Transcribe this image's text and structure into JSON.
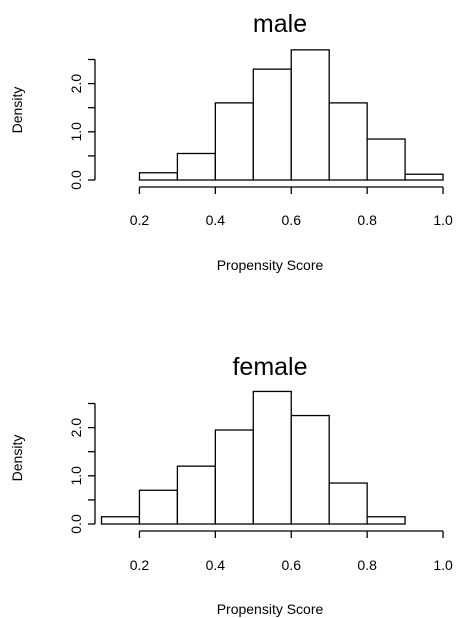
{
  "chart_data": [
    {
      "type": "bar",
      "title": "male",
      "xlabel": "Propensity Score",
      "ylabel": "Density",
      "xlim": [
        0.1,
        1.0
      ],
      "ylim": [
        0,
        2.7
      ],
      "x_ticks": [
        "0.2",
        "0.4",
        "0.6",
        "0.8",
        "1.0"
      ],
      "y_ticks": [
        "0.0",
        "1.0",
        "2.0"
      ],
      "bins": [
        {
          "x0": 0.2,
          "x1": 0.3,
          "value": 0.15
        },
        {
          "x0": 0.3,
          "x1": 0.4,
          "value": 0.55
        },
        {
          "x0": 0.4,
          "x1": 0.5,
          "value": 1.6
        },
        {
          "x0": 0.5,
          "x1": 0.6,
          "value": 2.3
        },
        {
          "x0": 0.6,
          "x1": 0.7,
          "value": 2.7
        },
        {
          "x0": 0.7,
          "x1": 0.8,
          "value": 1.6
        },
        {
          "x0": 0.8,
          "x1": 0.9,
          "value": 0.85
        },
        {
          "x0": 0.9,
          "x1": 1.0,
          "value": 0.12
        }
      ]
    },
    {
      "type": "bar",
      "title": "female",
      "xlabel": "Propensity Score",
      "ylabel": "Density",
      "xlim": [
        0.1,
        1.0
      ],
      "ylim": [
        0,
        2.7
      ],
      "x_ticks": [
        "0.2",
        "0.4",
        "0.6",
        "0.8",
        "1.0"
      ],
      "y_ticks": [
        "0.0",
        "1.0",
        "2.0"
      ],
      "bins": [
        {
          "x0": 0.1,
          "x1": 0.2,
          "value": 0.15
        },
        {
          "x0": 0.2,
          "x1": 0.3,
          "value": 0.7
        },
        {
          "x0": 0.3,
          "x1": 0.4,
          "value": 1.2
        },
        {
          "x0": 0.4,
          "x1": 0.5,
          "value": 1.95
        },
        {
          "x0": 0.5,
          "x1": 0.6,
          "value": 2.75
        },
        {
          "x0": 0.6,
          "x1": 0.7,
          "value": 2.25
        },
        {
          "x0": 0.7,
          "x1": 0.8,
          "value": 0.85
        },
        {
          "x0": 0.8,
          "x1": 0.9,
          "value": 0.15
        }
      ]
    }
  ]
}
